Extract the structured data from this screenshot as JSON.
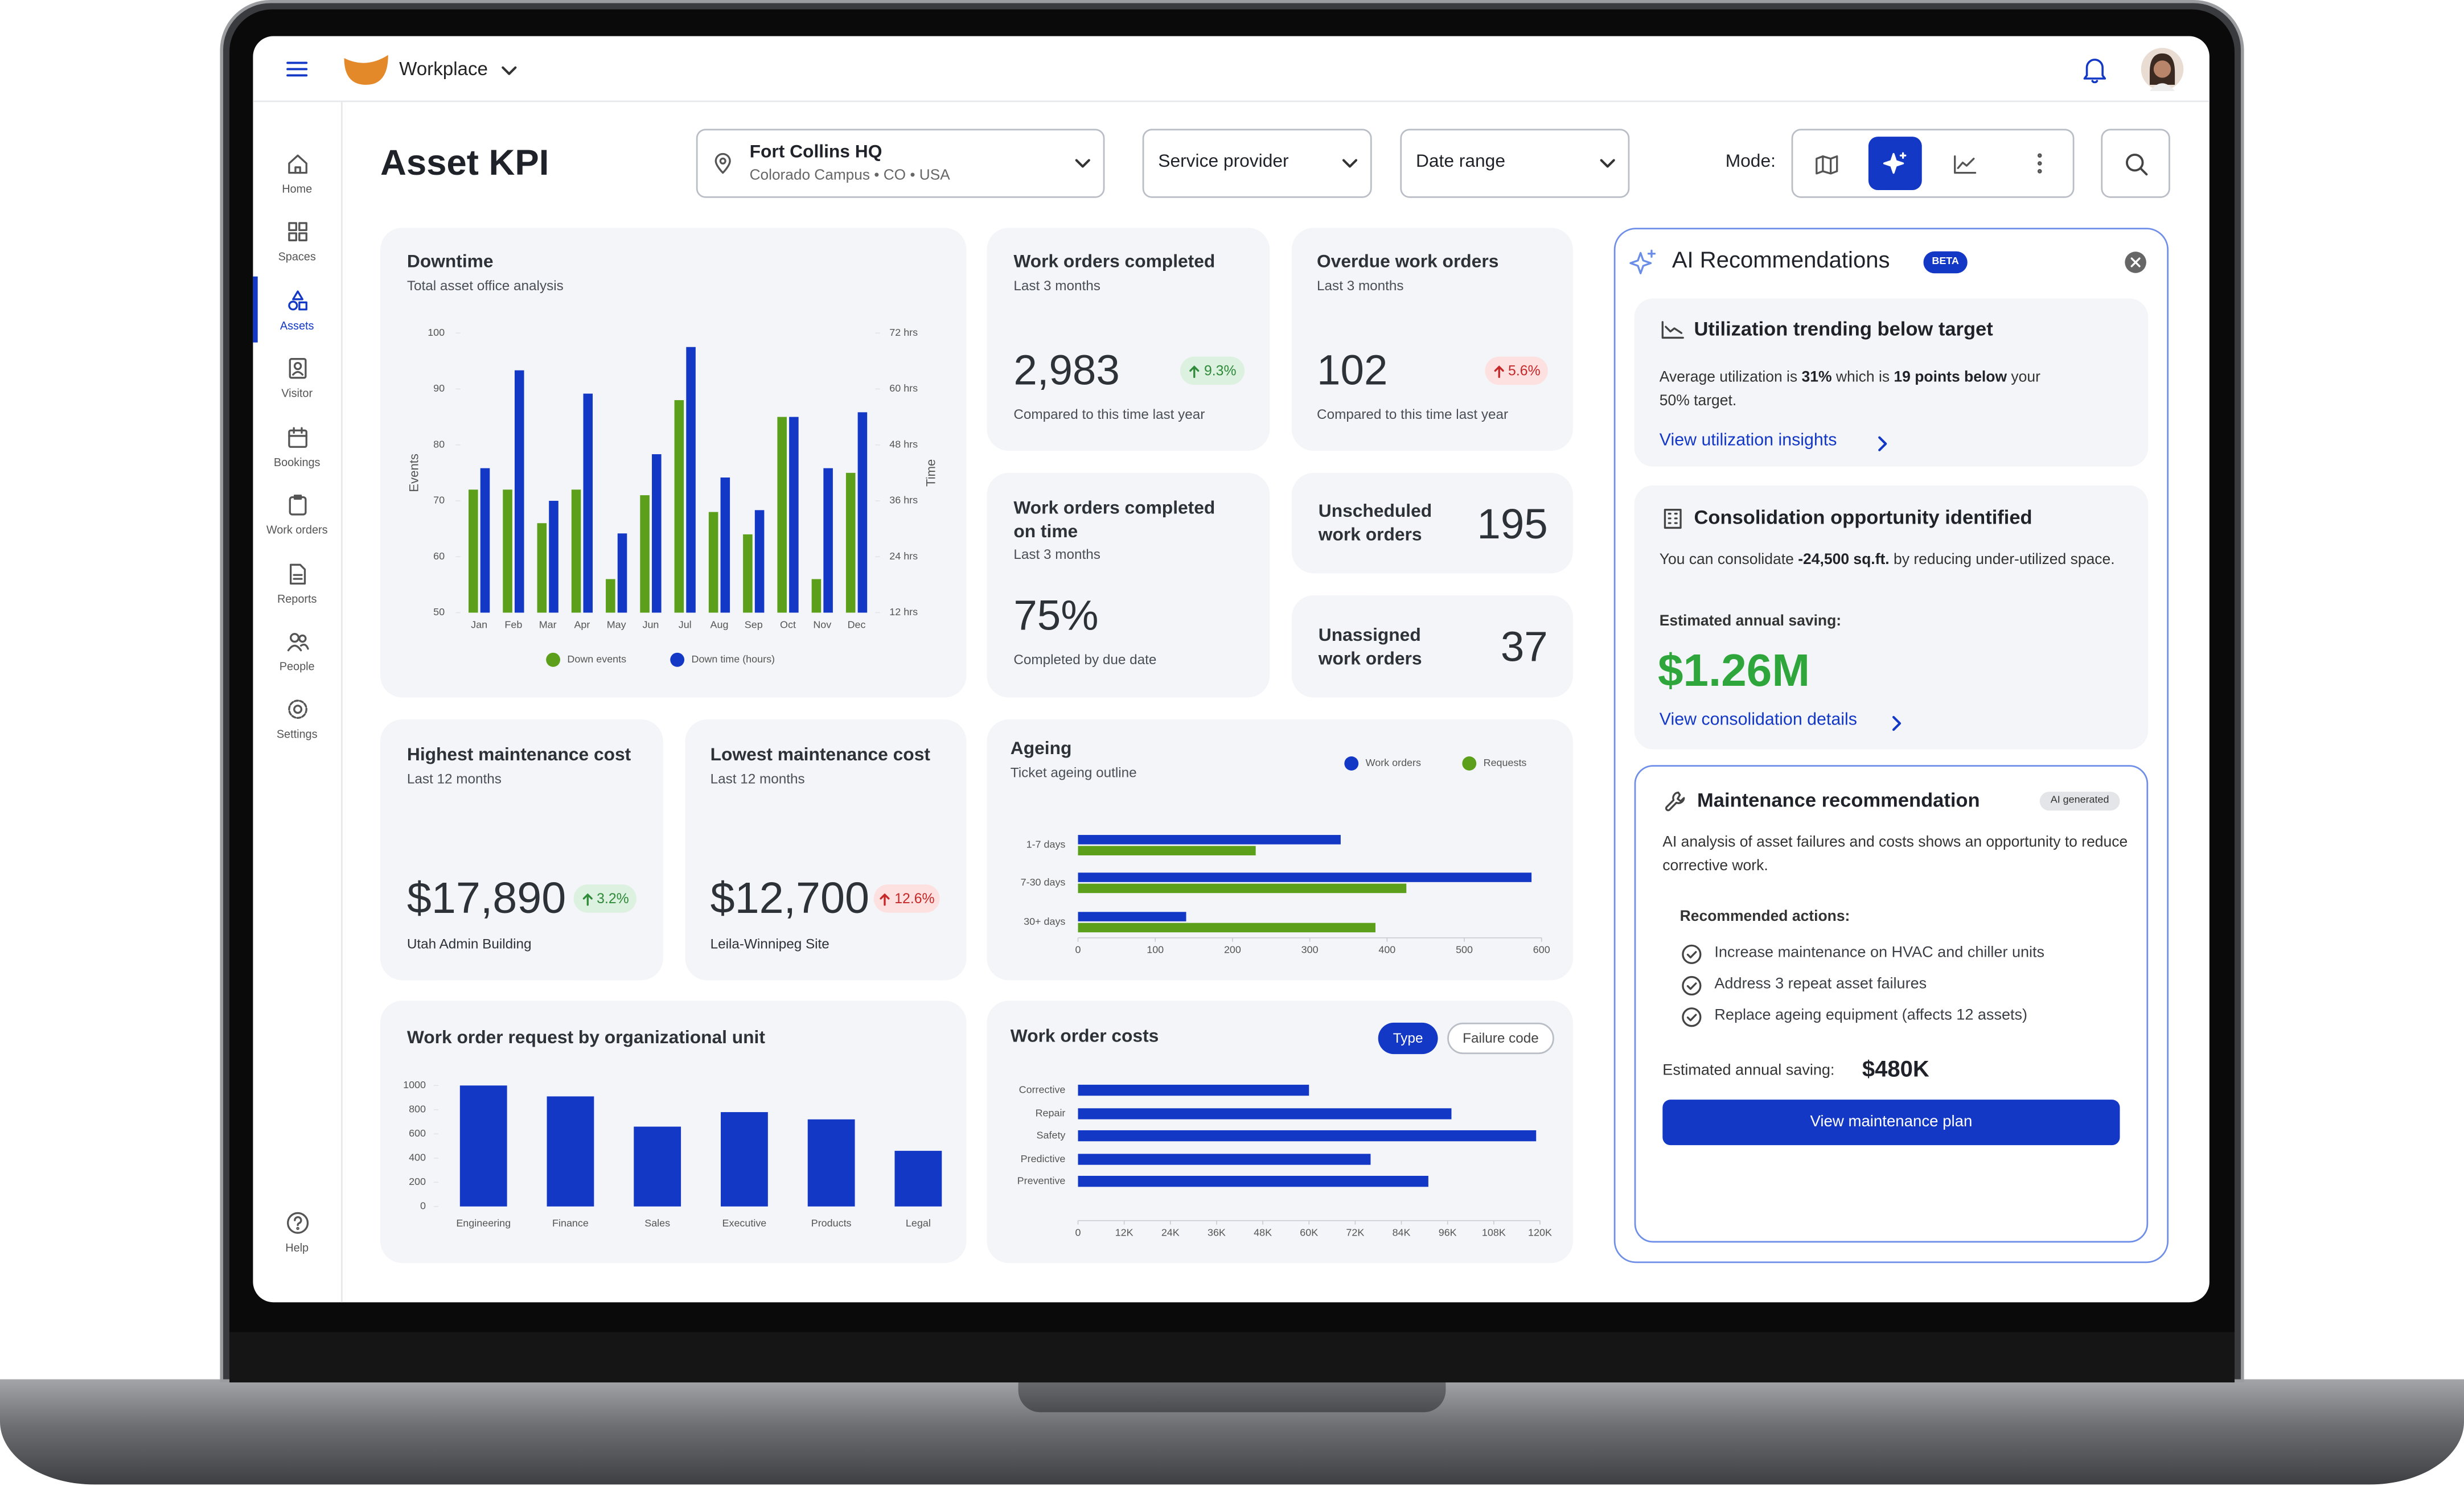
{
  "app": {
    "name": "Workplace"
  },
  "nav": [
    "Home",
    "Spaces",
    "Assets",
    "Visitor",
    "Bookings",
    "Work orders",
    "Reports",
    "People",
    "Settings"
  ],
  "help": "Help",
  "header": {
    "title": "Asset KPI",
    "location": {
      "name": "Fort Collins HQ",
      "detail": "Colorado Campus • CO • USA"
    },
    "filters": [
      "Service provider",
      "Date range"
    ],
    "mode_label": "Mode:"
  },
  "kpis": {
    "work_orders_completed": {
      "title": "Work orders completed",
      "period": "Last 3 months",
      "value": "2,983",
      "change": "9.3%",
      "note": "Compared to this time last year"
    },
    "overdue_work_orders": {
      "title": "Overdue work orders",
      "period": "Last 3 months",
      "value": "102",
      "change": "5.6%",
      "note": "Compared to this time last year"
    },
    "completed_on_time": {
      "title": "Work orders completed on time",
      "period": "Last 3 months",
      "value": "75%",
      "note": "Completed by due date"
    },
    "unscheduled": {
      "title": "Unscheduled work orders",
      "value": "195"
    },
    "unassigned": {
      "title": "Unassigned work orders",
      "value": "37"
    },
    "highest_cost": {
      "title": "Highest maintenance cost",
      "period": "Last 12 months",
      "value": "$17,890",
      "change": "3.2%",
      "site": "Utah Admin Building"
    },
    "lowest_cost": {
      "title": "Lowest maintenance cost",
      "period": "Last 12 months",
      "value": "$12,700",
      "change": "12.6%",
      "site": "Leila-Winnipeg Site"
    }
  },
  "ai": {
    "title": "AI Recommendations",
    "badge": "BETA",
    "utilization": {
      "title": "Utilization trending below target",
      "body": [
        "Average utilization is ",
        "31%",
        " which is ",
        "19 points below",
        " your 50% target."
      ],
      "link": "View utilization insights"
    },
    "consolidation": {
      "title": "Consolidation opportunity identified",
      "body": [
        "You can consolidate ",
        "-24,500 sq.ft.",
        " by reducing under-utilized space."
      ],
      "saving_label": "Estimated annual saving:",
      "saving": "$1.26M",
      "link": "View consolidation details"
    },
    "maintenance": {
      "title": "Maintenance recommendation",
      "tag": "AI generated",
      "body": "AI analysis of asset failures and costs shows an opportunity to reduce corrective work.",
      "actions_label": "Recommended actions:",
      "actions": [
        "Increase maintenance on HVAC and chiller units",
        "Address 3 repeat asset failures",
        "Replace ageing equipment (affects 12 assets)"
      ],
      "saving_label": "Estimated annual saving:",
      "saving": "$480K",
      "button": "View maintenance plan"
    }
  },
  "chart_data": [
    {
      "type": "bar",
      "title": "Downtime",
      "subtitle": "Total asset office analysis",
      "categories": [
        "Jan",
        "Feb",
        "Mar",
        "Apr",
        "May",
        "Jun",
        "Jul",
        "Aug",
        "Sep",
        "Oct",
        "Nov",
        "Dec"
      ],
      "y_label": "Events",
      "y2_label": "Time",
      "series": [
        {
          "name": "Down events",
          "color": "#5b9f1a",
          "values": [
            72,
            72,
            66,
            72,
            56,
            71,
            88,
            68,
            64,
            85,
            56,
            75
          ]
        },
        {
          "name": "Down time (hours)",
          "color": "#1438c6",
          "axis": "y2",
          "values": [
            43,
            64,
            36,
            59,
            29,
            46,
            69,
            41,
            34,
            54,
            43,
            55
          ]
        }
      ],
      "ylim": [
        50,
        100
      ],
      "yticks": [
        50,
        60,
        70,
        80,
        90,
        100
      ],
      "y2lim": [
        12,
        72
      ],
      "y2ticks": [
        {
          "value": 12,
          "label": "12 hrs"
        },
        {
          "value": 24,
          "label": "24 hrs"
        },
        {
          "value": 36,
          "label": "36 hrs"
        },
        {
          "value": 48,
          "label": "48 hrs"
        },
        {
          "value": 60,
          "label": "60 hrs"
        },
        {
          "value": 72,
          "label": "72 hrs"
        }
      ],
      "grid": false,
      "legend": "bottom"
    },
    {
      "type": "bar",
      "orientation": "horizontal",
      "title": "Ageing",
      "subtitle": "Ticket ageing outline",
      "categories": [
        "1-7 days",
        "7-30 days",
        "30+ days"
      ],
      "series": [
        {
          "name": "Work orders",
          "color": "#1438c6",
          "values": [
            340,
            587,
            140
          ]
        },
        {
          "name": "Requests",
          "color": "#5b9f1a",
          "values": [
            230,
            425,
            385
          ]
        }
      ],
      "xlim": [
        0,
        600
      ],
      "xticks": [
        0,
        100,
        200,
        300,
        400,
        500,
        600
      ],
      "grid": false,
      "legend": "top-right"
    },
    {
      "type": "bar",
      "title": "Work order request by organizational unit",
      "categories": [
        "Engineering",
        "Finance",
        "Sales",
        "Executive",
        "Products",
        "Legal"
      ],
      "values": [
        1000,
        910,
        660,
        780,
        720,
        460
      ],
      "color": "#1438c6",
      "ylim": [
        0,
        1000
      ],
      "yticks": [
        0,
        200,
        400,
        600,
        800,
        1000
      ],
      "grid": false
    },
    {
      "type": "bar",
      "orientation": "horizontal",
      "title": "Work order costs",
      "toggles": [
        "Type",
        "Failure code"
      ],
      "categories": [
        "Corrective",
        "Repair",
        "Safety",
        "Predictive",
        "Preventive"
      ],
      "values": [
        60000,
        97000,
        119000,
        76000,
        91000
      ],
      "color": "#1438c6",
      "xlim": [
        0,
        120000
      ],
      "xticks": [
        0,
        {
          "value": 12000,
          "label": "12K"
        },
        {
          "value": 24000,
          "label": "24K"
        },
        {
          "value": 36000,
          "label": "36K"
        },
        {
          "value": 48000,
          "label": "48K"
        },
        {
          "value": 60000,
          "label": "60K"
        },
        {
          "value": 72000,
          "label": "72K"
        },
        {
          "value": 84000,
          "label": "84K"
        },
        {
          "value": 96000,
          "label": "96K"
        },
        {
          "value": 108000,
          "label": "108K"
        },
        {
          "value": 120000,
          "label": "120K"
        }
      ],
      "grid": false
    }
  ]
}
